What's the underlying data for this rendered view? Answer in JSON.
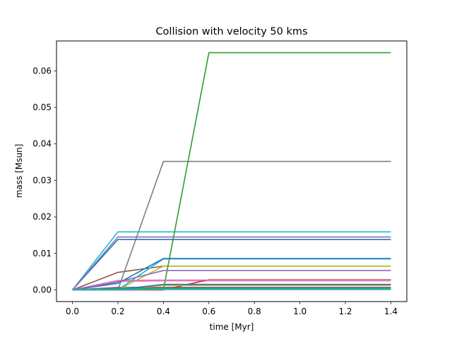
{
  "chart_data": {
    "type": "line",
    "title": "Collision with velocity 50 kms",
    "xlabel": "time [Myr]",
    "ylabel": "mass [Msun]",
    "xlim": [
      -0.07,
      1.47
    ],
    "ylim": [
      -0.0032,
      0.0682
    ],
    "xticks": [
      "0.0",
      "0.2",
      "0.4",
      "0.6",
      "0.8",
      "1.0",
      "1.2",
      "1.4"
    ],
    "yticks": [
      "0.00",
      "0.01",
      "0.02",
      "0.03",
      "0.04",
      "0.05",
      "0.06"
    ],
    "grid": false,
    "legend": "none",
    "series": [
      {
        "color": "#9467bd",
        "points": [
          [
            0,
            0
          ],
          [
            0.2,
            0.0007
          ],
          [
            0.4,
            0.0007
          ],
          [
            1.4,
            0.0007
          ]
        ]
      },
      {
        "color": "#8c564b",
        "points": [
          [
            0,
            0
          ],
          [
            0.2,
            0.0048
          ],
          [
            0.4,
            0.0065
          ],
          [
            1.4,
            0.0065
          ]
        ]
      },
      {
        "color": "#e377c2",
        "points": [
          [
            0,
            0
          ],
          [
            0.2,
            0.0023
          ],
          [
            0.4,
            0.0025
          ],
          [
            1.4,
            0.0025
          ]
        ]
      },
      {
        "color": "#7f7f7f",
        "points": [
          [
            0,
            0
          ],
          [
            0.2,
            0
          ],
          [
            0.4,
            0.0352
          ],
          [
            1.4,
            0.0352
          ]
        ]
      },
      {
        "color": "#bcbd22",
        "points": [
          [
            0,
            0
          ],
          [
            0.2,
            0
          ],
          [
            0.4,
            0.0065
          ],
          [
            1.4,
            0.0065
          ]
        ]
      },
      {
        "color": "#17becf",
        "points": [
          [
            0,
            0
          ],
          [
            0.2,
            0.0159
          ],
          [
            0.4,
            0.0159
          ],
          [
            1.4,
            0.0159
          ]
        ]
      },
      {
        "color": "#1f77b4",
        "points": [
          [
            0,
            0
          ],
          [
            0.2,
            0.0138
          ],
          [
            0.4,
            0.0138
          ],
          [
            1.4,
            0.0138
          ]
        ]
      },
      {
        "color": "#ff7f0e",
        "points": [
          [
            0,
            0
          ],
          [
            0.2,
            0
          ],
          [
            0.4,
            0.0002
          ],
          [
            1.4,
            0.0002
          ]
        ]
      },
      {
        "color": "#2ca02c",
        "points": [
          [
            0,
            0
          ],
          [
            0.2,
            0
          ],
          [
            0.4,
            0
          ],
          [
            0.6,
            0.065
          ],
          [
            1.4,
            0.065
          ]
        ]
      },
      {
        "color": "#d62728",
        "points": [
          [
            0,
            0
          ],
          [
            0.2,
            0
          ],
          [
            0.4,
            0
          ],
          [
            0.6,
            0.0028
          ],
          [
            1.4,
            0.0028
          ]
        ]
      },
      {
        "color": "#9467bd",
        "points": [
          [
            0,
            0
          ],
          [
            0.2,
            0.0145
          ],
          [
            0.4,
            0.0145
          ],
          [
            1.4,
            0.0145
          ]
        ]
      },
      {
        "color": "#8c564b",
        "points": [
          [
            0,
            0
          ],
          [
            0.2,
            0.0005
          ],
          [
            0.4,
            0.0005
          ],
          [
            1.4,
            0.0005
          ]
        ]
      },
      {
        "color": "#e377c2",
        "points": [
          [
            0,
            0
          ],
          [
            0.2,
            0.0026
          ],
          [
            0.4,
            0.0027
          ],
          [
            1.4,
            0.0027
          ]
        ]
      },
      {
        "color": "#7f7f7f",
        "points": [
          [
            0,
            0
          ],
          [
            0.2,
            0.0001
          ],
          [
            0.4,
            0.0001
          ],
          [
            1.4,
            0.0001
          ]
        ]
      },
      {
        "color": "#bcbd22",
        "points": [
          [
            0,
            0
          ],
          [
            0.2,
            0.0003
          ],
          [
            0.4,
            0.0012
          ],
          [
            1.4,
            0.0012
          ]
        ]
      },
      {
        "color": "#17becf",
        "points": [
          [
            0,
            0
          ],
          [
            0.2,
            0
          ],
          [
            0.4,
            0.0085
          ],
          [
            1.4,
            0.0085
          ]
        ]
      },
      {
        "color": "#1f77b4",
        "points": [
          [
            0,
            0
          ],
          [
            0.2,
            0.0018
          ],
          [
            0.4,
            0.0086
          ],
          [
            1.4,
            0.0086
          ]
        ]
      },
      {
        "color": "#ff7f0e",
        "points": [
          [
            0,
            0
          ],
          [
            0.2,
            0.0002
          ],
          [
            0.4,
            0.0003
          ],
          [
            1.4,
            0.0003
          ]
        ]
      },
      {
        "color": "#2ca02c",
        "points": [
          [
            0,
            0
          ],
          [
            0.2,
            0.0003
          ],
          [
            0.4,
            0.0004
          ],
          [
            1.4,
            0.0004
          ]
        ]
      },
      {
        "color": "#9467bd",
        "points": [
          [
            0,
            0
          ],
          [
            0.2,
            0.0022
          ],
          [
            0.4,
            0.0053
          ],
          [
            1.4,
            0.0053
          ]
        ]
      },
      {
        "color": "#1f77b4",
        "points": [
          [
            0,
            0
          ],
          [
            0.2,
            0.0001
          ],
          [
            0.4,
            0.0015
          ],
          [
            1.4,
            0.0015
          ]
        ]
      },
      {
        "color": "#17becf",
        "points": [
          [
            0,
            0
          ],
          [
            0.2,
            0.0001
          ],
          [
            0.4,
            0.0002
          ],
          [
            1.4,
            0.0002
          ]
        ]
      }
    ]
  }
}
